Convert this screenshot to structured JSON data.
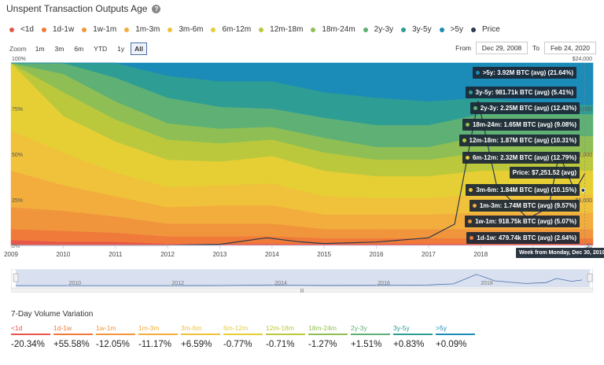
{
  "header": {
    "title": "Unspent Transaction Outputs Age"
  },
  "colors": {
    "<1d": "#e8564a",
    "1d-1w": "#ef7a3a",
    "1w-1m": "#f0953c",
    "1m-3m": "#f3ad3d",
    "3m-6m": "#f0c13a",
    "6m-12m": "#e6cf34",
    "12m-18m": "#bcc83c",
    "18m-24m": "#8fbf54",
    "2y-3y": "#5fb074",
    "3y-5y": "#2e9d94",
    "5y": "#1b8bb8",
    "price": "#2b3a4e"
  },
  "legend": [
    {
      "label": "<1d",
      "key": "<1d"
    },
    {
      "label": "1d-1w",
      "key": "1d-1w"
    },
    {
      "label": "1w-1m",
      "key": "1w-1m"
    },
    {
      "label": "1m-3m",
      "key": "1m-3m"
    },
    {
      "label": "3m-6m",
      "key": "3m-6m"
    },
    {
      "label": "6m-12m",
      "key": "6m-12m"
    },
    {
      "label": "12m-18m",
      "key": "12m-18m"
    },
    {
      "label": "18m-24m",
      "key": "18m-24m"
    },
    {
      "label": "2y-3y",
      "key": "2y-3y"
    },
    {
      "label": "3y-5y",
      "key": "3y-5y"
    },
    {
      "label": ">5y",
      "key": "5y"
    },
    {
      "label": "Price",
      "key": "price"
    }
  ],
  "zoom": {
    "label": "Zoom",
    "options": [
      "1m",
      "3m",
      "6m",
      "YTD",
      "1y",
      "All"
    ],
    "active": "All"
  },
  "range": {
    "from_label": "From",
    "from": "Dec 29, 2008",
    "to_label": "To",
    "to": "Feb 24, 2020"
  },
  "chart_data": {
    "type": "area",
    "stacking": "percent",
    "x": [
      2009,
      2010,
      2011,
      2012,
      2013,
      2014,
      2015,
      2016,
      2017,
      2018,
      2019,
      2020
    ],
    "x_ticks": [
      "2009",
      "2010",
      "2011",
      "2012",
      "2013",
      "2014",
      "2015",
      "2016",
      "2017",
      "2018",
      "2019",
      "2020"
    ],
    "y_left_ticks": [
      "0%",
      "25%",
      "50%",
      "75%",
      "100%"
    ],
    "y_right_ticks": [
      "$0",
      "$6,000",
      "$12,000",
      "$18,000",
      "$24,000"
    ],
    "y_right_lim": [
      0,
      24000
    ],
    "series": [
      {
        "name": "<1d",
        "key": "<1d",
        "values": [
          3,
          2,
          2,
          1,
          1,
          1,
          1,
          1,
          1,
          1,
          1,
          1
        ]
      },
      {
        "name": "1d-1w",
        "key": "1d-1w",
        "values": [
          6,
          6,
          5,
          4,
          4,
          4,
          3,
          3,
          3,
          3,
          3,
          3
        ]
      },
      {
        "name": "1w-1m",
        "key": "1w-1m",
        "values": [
          12,
          11,
          9,
          7,
          7,
          7,
          5,
          5,
          5,
          5,
          5,
          5
        ]
      },
      {
        "name": "1m-3m",
        "key": "1m-3m",
        "values": [
          20,
          14,
          11,
          9,
          10,
          10,
          8,
          8,
          8,
          9,
          9,
          9
        ]
      },
      {
        "name": "3m-6m",
        "key": "3m-6m",
        "values": [
          22,
          18,
          13,
          11,
          11,
          12,
          10,
          9,
          9,
          10,
          10,
          10
        ]
      },
      {
        "name": "6m-12m",
        "key": "6m-12m",
        "values": [
          37,
          20,
          17,
          15,
          13,
          15,
          14,
          12,
          12,
          13,
          13,
          13
        ]
      },
      {
        "name": "12m-18m",
        "key": "12m-18m",
        "values": [
          0,
          13,
          12,
          11,
          10,
          9,
          10,
          9,
          9,
          10,
          10,
          10
        ]
      },
      {
        "name": "18m-24m",
        "key": "18m-24m",
        "values": [
          0,
          10,
          10,
          9,
          8,
          7,
          8,
          7,
          7,
          9,
          9,
          9
        ]
      },
      {
        "name": "2y-3y",
        "key": "2y-3y",
        "values": [
          0,
          6,
          13,
          14,
          12,
          10,
          11,
          12,
          12,
          12,
          12,
          12
        ]
      },
      {
        "name": "3y-5y",
        "key": "3y-5y",
        "values": [
          0,
          0,
          8,
          12,
          14,
          15,
          14,
          15,
          13,
          9,
          6,
          5
        ]
      },
      {
        "name": ">5y",
        "key": "5y",
        "values": [
          0,
          0,
          0,
          7,
          10,
          10,
          16,
          19,
          21,
          19,
          22,
          23
        ]
      }
    ],
    "price": {
      "name": "Price",
      "x": [
        2009,
        2012,
        2013,
        2013.9,
        2014.5,
        2015,
        2016,
        2017,
        2017.5,
        2017.95,
        2018.3,
        2018.9,
        2019.3,
        2019.5,
        2019.8,
        2020
      ],
      "values": [
        0,
        5,
        150,
        1000,
        500,
        250,
        450,
        1000,
        2800,
        19000,
        8000,
        3500,
        5000,
        12000,
        7200,
        9500
      ]
    },
    "tooltip": {
      "items": [
        {
          "key": "5y",
          "text": ">5y: 3.92M BTC (avg) (21.64%)"
        },
        {
          "key": "3y-5y",
          "text": "3y-5y: 981.71k BTC (avg) (5.41%)"
        },
        {
          "key": "2y-3y",
          "text": "2y-3y: 2.25M BTC (avg) (12.43%)"
        },
        {
          "key": "18m-24m",
          "text": "18m-24m: 1.65M BTC (avg) (9.08%)"
        },
        {
          "key": "12m-18m",
          "text": "12m-18m: 1.87M BTC (avg) (10.31%)"
        },
        {
          "key": "6m-12m",
          "text": "6m-12m: 2.32M BTC (avg) (12.79%)"
        },
        {
          "key": "price",
          "text": "Price: $7,251.52 (avg)"
        },
        {
          "key": "3m-6m",
          "text": "3m-6m: 1.84M BTC (avg) (10.15%)"
        },
        {
          "key": "1m-3m",
          "text": "1m-3m: 1.74M BTC (avg) (9.57%)"
        },
        {
          "key": "1w-1m",
          "text": "1w-1m: 918.75k BTC (avg) (5.07%)"
        },
        {
          "key": "1d-1w",
          "text": "1d-1w: 479.74k BTC (avg) (2.64%)"
        }
      ],
      "week_label": "Week from Monday, Dec 30, 2019"
    }
  },
  "navigator": {
    "ticks": [
      "2010",
      "2012",
      "2014",
      "2016",
      "2018"
    ]
  },
  "volume": {
    "title": "7-Day Volume Variation",
    "items": [
      {
        "label": "<1d",
        "key": "<1d",
        "value": "-20.34%"
      },
      {
        "label": "1d-1w",
        "key": "1d-1w",
        "value": "+55.58%"
      },
      {
        "label": "1w-1m",
        "key": "1w-1m",
        "value": "-12.05%"
      },
      {
        "label": "1m-3m",
        "key": "1m-3m",
        "value": "-11.17%"
      },
      {
        "label": "3m-6m",
        "key": "3m-6m",
        "value": "+6.59%"
      },
      {
        "label": "6m-12m",
        "key": "6m-12m",
        "value": "-0.77%"
      },
      {
        "label": "12m-18m",
        "key": "12m-18m",
        "value": "-0.71%"
      },
      {
        "label": "18m-24m",
        "key": "18m-24m",
        "value": "-1.27%"
      },
      {
        "label": "2y-3y",
        "key": "2y-3y",
        "value": "+1.51%"
      },
      {
        "label": "3y-5y",
        "key": "3y-5y",
        "value": "+0.83%"
      },
      {
        "label": ">5y",
        "key": "5y",
        "value": "+0.09%"
      }
    ]
  }
}
